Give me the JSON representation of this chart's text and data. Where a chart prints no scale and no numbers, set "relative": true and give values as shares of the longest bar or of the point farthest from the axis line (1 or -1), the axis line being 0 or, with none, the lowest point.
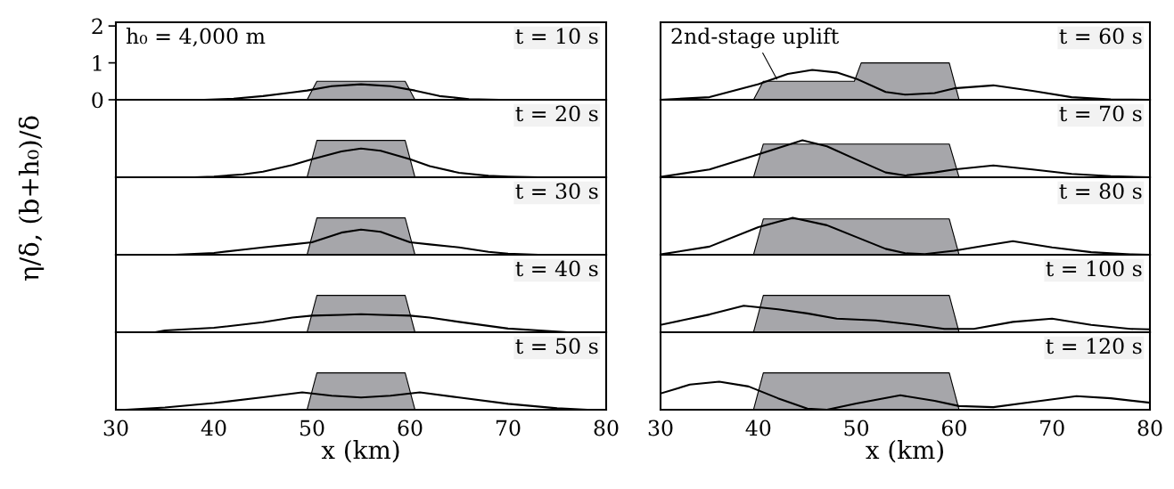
{
  "chart_data": [
    {
      "type": "area",
      "ylabel": "η/δ, (b+h₀)/δ",
      "xlim": [
        30,
        80
      ],
      "ylim": [
        0,
        2.1
      ],
      "yticks": [
        0,
        1,
        2
      ],
      "tick_labels": "y",
      "grid": false,
      "legend": false,
      "annotations": [
        "t = 10 s",
        "h₀ = 4,000 m"
      ],
      "series": [
        {
          "type": "area",
          "color": "#a6a6aa",
          "x": [
            49.5,
            50.5,
            59.5,
            60.5
          ],
          "values": [
            0,
            0.5,
            0.5,
            0
          ]
        },
        {
          "type": "line",
          "color": "#000000",
          "x": [
            39,
            42,
            45,
            48,
            49.5,
            52,
            55,
            58,
            60.5,
            63,
            66,
            69
          ],
          "values": [
            0,
            0.03,
            0.1,
            0.2,
            0.25,
            0.37,
            0.42,
            0.37,
            0.25,
            0.1,
            0.02,
            0
          ]
        }
      ]
    },
    {
      "type": "area",
      "relative": true,
      "xlim": [
        30,
        80
      ],
      "tick_labels": false,
      "grid": false,
      "legend": false,
      "annotations": [
        "t = 60 s",
        {
          "text": "2nd-stage uplift",
          "x": 42,
          "y": 0.5
        }
      ],
      "series": [
        {
          "type": "area",
          "color": "#a6a6aa",
          "x": [
            39.5,
            40.5,
            49.8,
            50.5,
            59.5,
            60.5
          ],
          "values": [
            0,
            0.5,
            0.5,
            1,
            1,
            0
          ]
        },
        {
          "type": "line",
          "color": "#000000",
          "x": [
            30,
            35,
            40,
            43,
            45.5,
            48,
            50,
            53,
            55,
            58,
            60,
            64,
            68,
            72,
            76,
            80
          ],
          "values": [
            0,
            0.07,
            0.42,
            0.7,
            0.81,
            0.74,
            0.57,
            0.21,
            0.14,
            0.18,
            0.31,
            0.39,
            0.24,
            0.07,
            0.01,
            0
          ]
        }
      ]
    },
    {
      "type": "area",
      "relative": true,
      "xlim": [
        30,
        80
      ],
      "tick_labels": false,
      "grid": false,
      "legend": false,
      "annotations": [
        "t = 20 s"
      ],
      "series": [
        {
          "type": "area",
          "color": "#a6a6aa",
          "x": [
            49.5,
            50.5,
            59.5,
            60.5
          ],
          "values": [
            0,
            1,
            1,
            0
          ]
        },
        {
          "type": "line",
          "color": "#000000",
          "x": [
            38,
            40,
            43,
            45,
            48,
            50,
            53,
            55,
            57,
            60,
            62,
            65,
            68,
            70,
            73
          ],
          "values": [
            0,
            0.02,
            0.08,
            0.15,
            0.33,
            0.49,
            0.7,
            0.78,
            0.72,
            0.49,
            0.3,
            0.12,
            0.04,
            0.02,
            0
          ]
        }
      ]
    },
    {
      "type": "area",
      "relative": true,
      "xlim": [
        30,
        80
      ],
      "tick_labels": false,
      "grid": false,
      "legend": false,
      "annotations": [
        "t = 70 s"
      ],
      "series": [
        {
          "type": "area",
          "color": "#a6a6aa",
          "x": [
            39.5,
            40.5,
            59.5,
            60.5
          ],
          "values": [
            0,
            0.9,
            0.9,
            0
          ]
        },
        {
          "type": "line",
          "color": "#000000",
          "x": [
            30,
            35,
            40,
            44.5,
            47,
            50,
            53,
            55,
            58,
            60,
            64,
            68,
            72,
            76,
            80
          ],
          "values": [
            0.01,
            0.21,
            0.62,
            1,
            0.84,
            0.48,
            0.13,
            0.05,
            0.13,
            0.21,
            0.32,
            0.21,
            0.09,
            0.03,
            0
          ]
        }
      ]
    },
    {
      "type": "area",
      "relative": true,
      "xlim": [
        30,
        80
      ],
      "tick_labels": false,
      "grid": false,
      "legend": false,
      "annotations": [
        "t = 30 s"
      ],
      "series": [
        {
          "type": "area",
          "color": "#a6a6aa",
          "x": [
            49.5,
            50.5,
            59.5,
            60.5
          ],
          "values": [
            0,
            1,
            1,
            0
          ]
        },
        {
          "type": "line",
          "color": "#000000",
          "x": [
            36,
            40,
            43,
            45,
            48,
            50,
            53,
            55,
            57,
            60,
            62,
            65,
            68,
            70,
            73
          ],
          "values": [
            0,
            0.05,
            0.14,
            0.2,
            0.28,
            0.34,
            0.6,
            0.68,
            0.62,
            0.34,
            0.28,
            0.2,
            0.08,
            0.03,
            0
          ]
        }
      ]
    },
    {
      "type": "area",
      "relative": true,
      "xlim": [
        30,
        80
      ],
      "tick_labels": false,
      "grid": false,
      "legend": false,
      "annotations": [
        "t = 80 s"
      ],
      "series": [
        {
          "type": "area",
          "color": "#a6a6aa",
          "x": [
            39.5,
            40.5,
            59.5,
            60.5
          ],
          "values": [
            0,
            0.97,
            0.97,
            0
          ]
        },
        {
          "type": "line",
          "color": "#000000",
          "x": [
            30,
            35,
            40,
            43.5,
            47,
            50,
            53,
            55,
            57,
            60,
            63,
            66,
            70,
            74,
            78,
            80
          ],
          "values": [
            0.01,
            0.22,
            0.75,
            1,
            0.8,
            0.48,
            0.16,
            0.04,
            0.02,
            0.11,
            0.24,
            0.37,
            0.2,
            0.07,
            0.01,
            0
          ]
        }
      ]
    },
    {
      "type": "area",
      "relative": true,
      "xlim": [
        30,
        80
      ],
      "tick_labels": false,
      "grid": false,
      "legend": false,
      "annotations": [
        "t = 40 s"
      ],
      "series": [
        {
          "type": "area",
          "color": "#a6a6aa",
          "x": [
            49.5,
            50.5,
            59.5,
            60.5
          ],
          "values": [
            0,
            1,
            1,
            0
          ]
        },
        {
          "type": "line",
          "color": "#000000",
          "x": [
            34,
            35,
            40,
            45,
            48,
            50,
            53,
            55,
            57,
            60,
            62,
            65,
            70,
            75,
            76
          ],
          "values": [
            0,
            0.05,
            0.12,
            0.27,
            0.4,
            0.45,
            0.47,
            0.49,
            0.47,
            0.45,
            0.4,
            0.28,
            0.1,
            0.02,
            0
          ]
        }
      ]
    },
    {
      "type": "area",
      "relative": true,
      "xlim": [
        30,
        80
      ],
      "tick_labels": false,
      "grid": false,
      "legend": false,
      "annotations": [
        "t = 100 s"
      ],
      "series": [
        {
          "type": "area",
          "color": "#a6a6aa",
          "x": [
            39.5,
            40.5,
            59.5,
            60.5
          ],
          "values": [
            0,
            1,
            1,
            0
          ]
        },
        {
          "type": "line",
          "color": "#000000",
          "x": [
            30,
            35,
            38.5,
            42,
            45,
            48,
            52,
            56,
            59,
            62,
            66,
            70,
            74,
            78,
            80
          ],
          "values": [
            0.2,
            0.48,
            0.72,
            0.62,
            0.51,
            0.37,
            0.32,
            0.2,
            0.09,
            0.09,
            0.28,
            0.37,
            0.2,
            0.09,
            0.08
          ]
        }
      ]
    },
    {
      "type": "area",
      "relative": true,
      "xlabel": "x (km)",
      "xlim": [
        30,
        80
      ],
      "xticks": [
        30,
        40,
        50,
        60,
        70,
        80
      ],
      "tick_labels": "x",
      "grid": false,
      "legend": false,
      "annotations": [
        "t = 50 s"
      ],
      "series": [
        {
          "type": "area",
          "color": "#a6a6aa",
          "x": [
            49.5,
            50.5,
            59.5,
            60.5
          ],
          "values": [
            0,
            1,
            1,
            0
          ]
        },
        {
          "type": "line",
          "color": "#000000",
          "x": [
            31,
            35,
            40,
            45,
            49,
            52,
            55,
            58,
            61,
            65,
            70,
            75,
            78
          ],
          "values": [
            0,
            0.06,
            0.18,
            0.34,
            0.47,
            0.38,
            0.33,
            0.38,
            0.47,
            0.33,
            0.16,
            0.04,
            0
          ]
        }
      ]
    },
    {
      "type": "area",
      "relative": true,
      "xlabel": "x (km)",
      "xlim": [
        30,
        80
      ],
      "xticks": [
        30,
        40,
        50,
        60,
        70,
        80
      ],
      "tick_labels": "x",
      "grid": false,
      "legend": false,
      "annotations": [
        "t = 120 s"
      ],
      "series": [
        {
          "type": "area",
          "color": "#a6a6aa",
          "x": [
            39.5,
            40.5,
            59.5,
            60.5
          ],
          "values": [
            0,
            1,
            1,
            0
          ]
        },
        {
          "type": "line",
          "color": "#000000",
          "x": [
            30,
            33,
            36,
            39,
            42,
            45,
            47,
            50,
            54.5,
            58,
            60.5,
            64,
            68,
            72.5,
            76,
            80
          ],
          "values": [
            0.44,
            0.68,
            0.76,
            0.63,
            0.31,
            0.03,
            0,
            0.17,
            0.39,
            0.24,
            0.1,
            0.07,
            0.21,
            0.37,
            0.31,
            0.19
          ]
        }
      ]
    }
  ]
}
